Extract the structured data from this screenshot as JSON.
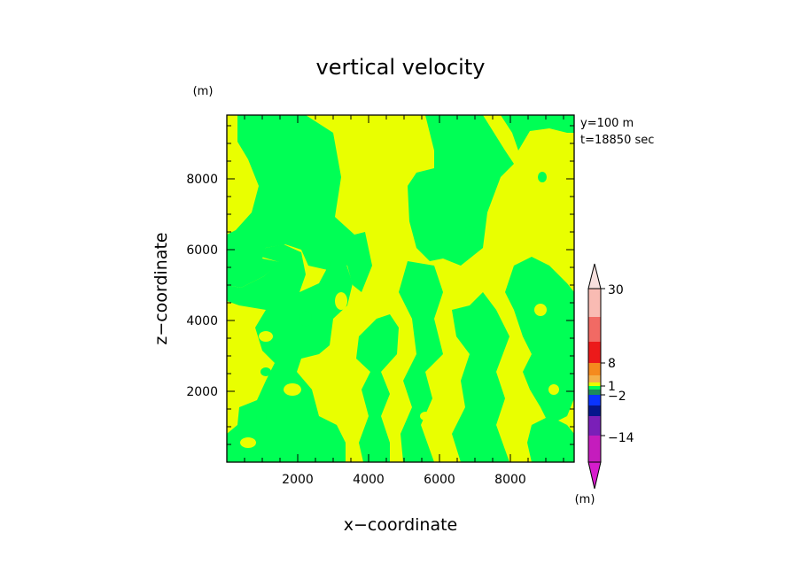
{
  "chart_data": {
    "type": "heatmap",
    "title": "vertical velocity",
    "xlabel": "x−coordinate",
    "ylabel": "z−coordinate",
    "y_unit": "(m)",
    "colorbar_unit": "(m)",
    "info_lines": [
      "y=100  m",
      "t=18850  sec"
    ],
    "xlim": [
      0,
      9800
    ],
    "ylim": [
      0,
      9800
    ],
    "x_ticks": [
      2000,
      4000,
      6000,
      8000
    ],
    "y_ticks": [
      2000,
      4000,
      6000,
      8000
    ],
    "x_tick_labels": [
      "2000",
      "4000",
      "6000",
      "8000"
    ],
    "y_tick_labels": [
      "2000",
      "4000",
      "6000",
      "8000"
    ],
    "colorbar_labels": [
      "30",
      "8",
      "1",
      "−2",
      "−14"
    ],
    "colorbar_colors": {
      "top_arrow": "#f8e0de",
      "pink": "#f9bbb3",
      "salmon": "#f16a64",
      "red": "#ec1a1a",
      "orange": "#f58a1e",
      "light_orange": "#f5b04a",
      "yellow": "#e9ff00",
      "green": "#00ff55",
      "teal": "#1b8c5a",
      "blue": "#0a34ff",
      "dark_blue": "#06168c",
      "purple": "#7a1fb8",
      "magenta": "#c51cbd",
      "bottom_arrow": "#d61ccc"
    },
    "field_colors": {
      "positive": "#e9ff00",
      "negative": "#00ff55"
    },
    "grid": false
  }
}
